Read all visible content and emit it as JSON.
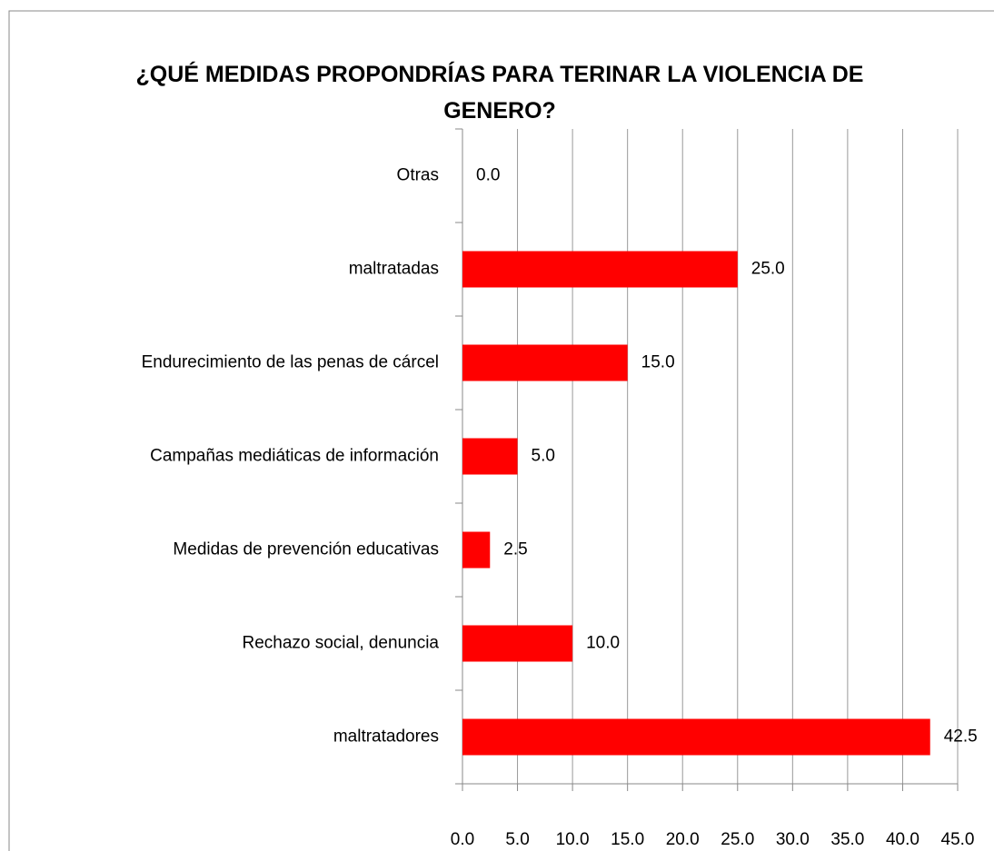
{
  "chart_data": {
    "type": "bar",
    "orientation": "horizontal",
    "title": "¿QUÉ MEDIDAS PROPONDRÍAS PARA TERINAR LA VIOLENCIA DE GENERO?",
    "categories": [
      "Otras",
      "maltratadas",
      "Endurecimiento de las penas de cárcel",
      "Campañas mediáticas de información",
      "Medidas de prevención educativas",
      "Rechazo social, denuncia",
      "maltratadores"
    ],
    "values": [
      0,
      25,
      15,
      5,
      2.5,
      10,
      42.5
    ],
    "value_labels": [
      "0.0",
      "25.0",
      "15.0",
      "5.0",
      "2.5",
      "10.0",
      "42.5"
    ],
    "color": "#ff0000",
    "xlim": [
      0,
      45
    ],
    "xticks": [
      {
        "value": 0,
        "label": "0.0"
      },
      {
        "value": 5,
        "label": "5.0"
      },
      {
        "value": 10,
        "label": "10.0"
      },
      {
        "value": 15,
        "label": "15.0"
      },
      {
        "value": 20,
        "label": "20.0"
      },
      {
        "value": 25,
        "label": "25.0"
      },
      {
        "value": 30,
        "label": "30.0"
      },
      {
        "value": 35,
        "label": "35.0"
      },
      {
        "value": 40,
        "label": "40.0"
      },
      {
        "value": 45,
        "label": "45.0"
      }
    ],
    "grid": true
  }
}
